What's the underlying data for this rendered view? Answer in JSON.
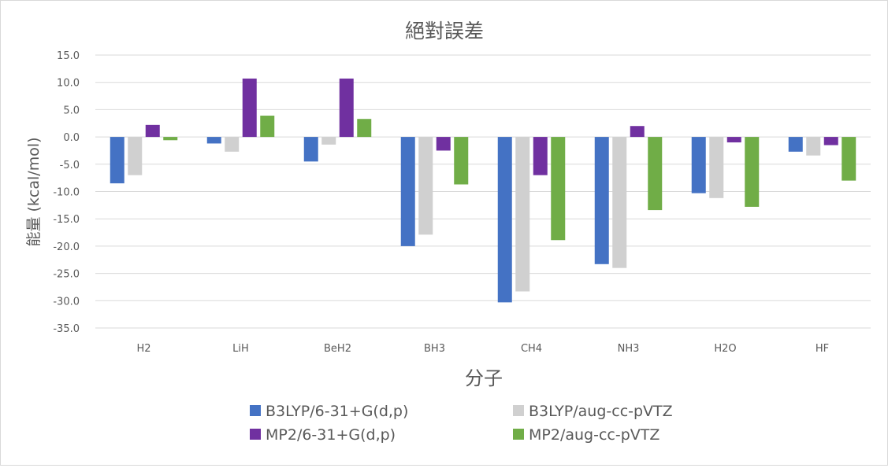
{
  "chart_data": {
    "type": "bar",
    "title": "絕對誤差",
    "xlabel": "分子",
    "ylabel": "能量 (kcal/mol)",
    "ylim": [
      -35,
      15
    ],
    "ytick_step": 5,
    "grid": true,
    "legend_position": "bottom",
    "categories": [
      "H2",
      "LiH",
      "BeH2",
      "BH3",
      "CH4",
      "NH3",
      "H2O",
      "HF"
    ],
    "series": [
      {
        "name": "B3LYP/6-31+G(d,p)",
        "color": "#4472c4",
        "values": [
          -8.5,
          -1.2,
          -4.5,
          -20.0,
          -30.3,
          -23.3,
          -10.3,
          -2.7
        ]
      },
      {
        "name": "B3LYP/aug-cc-pVTZ",
        "color": "#d0d0d0",
        "values": [
          -7.0,
          -2.7,
          -1.4,
          -17.9,
          -28.3,
          -24.0,
          -11.2,
          -3.4
        ]
      },
      {
        "name": "MP2/6-31+G(d,p)",
        "color": "#7030a0",
        "values": [
          2.2,
          10.7,
          10.7,
          -2.5,
          -7.0,
          2.0,
          -1.0,
          -1.5
        ]
      },
      {
        "name": "MP2/aug-cc-pVTZ",
        "color": "#70ad47",
        "values": [
          -0.6,
          3.9,
          3.3,
          -8.7,
          -18.9,
          -13.4,
          -12.8,
          -8.0
        ]
      }
    ]
  }
}
